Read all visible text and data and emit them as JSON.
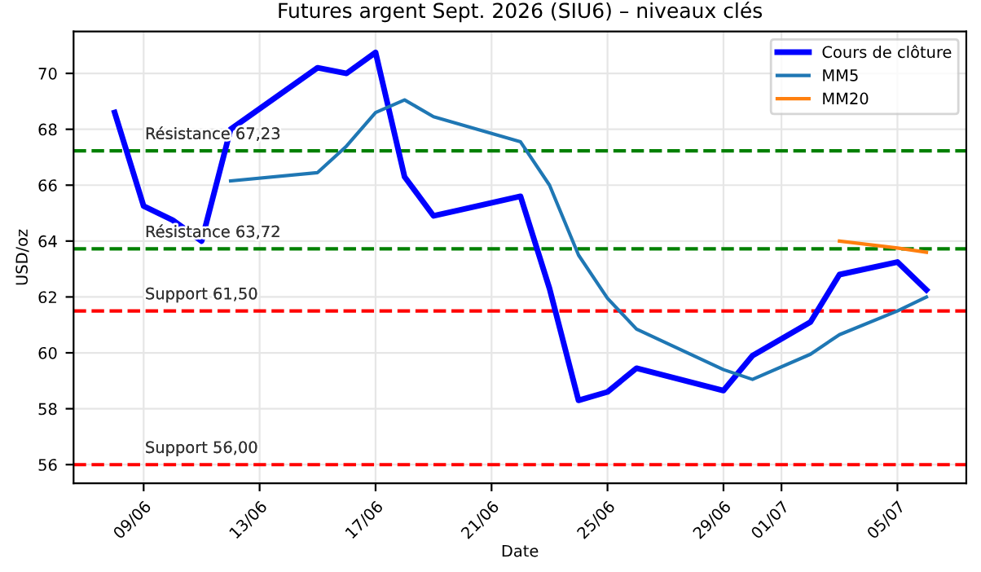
{
  "chart_data": {
    "type": "line",
    "title": "Futures argent Sept. 2026 (SIU6) – niveaux clés",
    "xlabel": "Date",
    "ylabel": "USD/oz",
    "series": [
      {
        "name": "Cours de clôture",
        "color": "#0000ff",
        "x": [
          "2026-06-08",
          "2026-06-09",
          "2026-06-10",
          "2026-06-11",
          "2026-06-12",
          "2026-06-15",
          "2026-06-16",
          "2026-06-17",
          "2026-06-18",
          "2026-06-19",
          "2026-06-22",
          "2026-06-23",
          "2026-06-24",
          "2026-06-25",
          "2026-06-26",
          "2026-06-29",
          "2026-06-30",
          "2026-07-02",
          "2026-07-03",
          "2026-07-05",
          "2026-07-06"
        ],
        "values": [
          68.6,
          65.25,
          64.75,
          64.0,
          68.0,
          70.2,
          70.0,
          70.75,
          66.3,
          64.9,
          65.6,
          62.3,
          58.3,
          58.6,
          59.45,
          58.65,
          59.9,
          61.1,
          62.8,
          63.25,
          62.25
        ]
      },
      {
        "name": "MM5",
        "color": "#1f77b4",
        "x": [
          "2026-06-12",
          "2026-06-15",
          "2026-06-16",
          "2026-06-17",
          "2026-06-18",
          "2026-06-19",
          "2026-06-22",
          "2026-06-23",
          "2026-06-24",
          "2026-06-25",
          "2026-06-26",
          "2026-06-29",
          "2026-06-30",
          "2026-07-02",
          "2026-07-03",
          "2026-07-05",
          "2026-07-06"
        ],
        "values": [
          66.15,
          66.45,
          67.4,
          68.6,
          69.05,
          68.45,
          67.55,
          66.0,
          63.5,
          61.95,
          60.85,
          59.4,
          59.05,
          59.95,
          60.65,
          61.5,
          62.0
        ]
      },
      {
        "name": "MM20",
        "color": "#ff7f0e",
        "x": [
          "2026-07-03",
          "2026-07-05",
          "2026-07-06"
        ],
        "values": [
          64.0,
          63.75,
          63.6
        ]
      }
    ],
    "ref_lines": [
      {
        "axis": "y",
        "value": 67.23,
        "label": "Résistance 67,23",
        "color": "#008000",
        "line_style": "dashed"
      },
      {
        "axis": "y",
        "value": 63.72,
        "label": "Résistance 63,72",
        "color": "#008000",
        "line_style": "dashed"
      },
      {
        "axis": "y",
        "value": 61.5,
        "label": "Support 61,50",
        "color": "#ff0000",
        "line_style": "dashed"
      },
      {
        "axis": "y",
        "value": 56.0,
        "label": "Support 56,00",
        "color": "#ff0000",
        "line_style": "dashed"
      }
    ],
    "xlim": [
      "2026-06-06T14:00",
      "2026-07-07T09:00"
    ],
    "ylim": [
      55.33,
      71.5
    ],
    "xticks": [
      {
        "value": "2026-06-09",
        "label": "09/06"
      },
      {
        "value": "2026-06-13",
        "label": "13/06"
      },
      {
        "value": "2026-06-17",
        "label": "17/06"
      },
      {
        "value": "2026-06-21",
        "label": "21/06"
      },
      {
        "value": "2026-06-25",
        "label": "25/06"
      },
      {
        "value": "2026-06-29",
        "label": "29/06"
      },
      {
        "value": "2026-07-01",
        "label": "01/07"
      },
      {
        "value": "2026-07-05",
        "label": "05/07"
      }
    ],
    "yticks": [
      56,
      58,
      60,
      62,
      64,
      66,
      68,
      70
    ],
    "grid": true,
    "legend": "top right",
    "marker": "none",
    "line_style": "solid"
  }
}
